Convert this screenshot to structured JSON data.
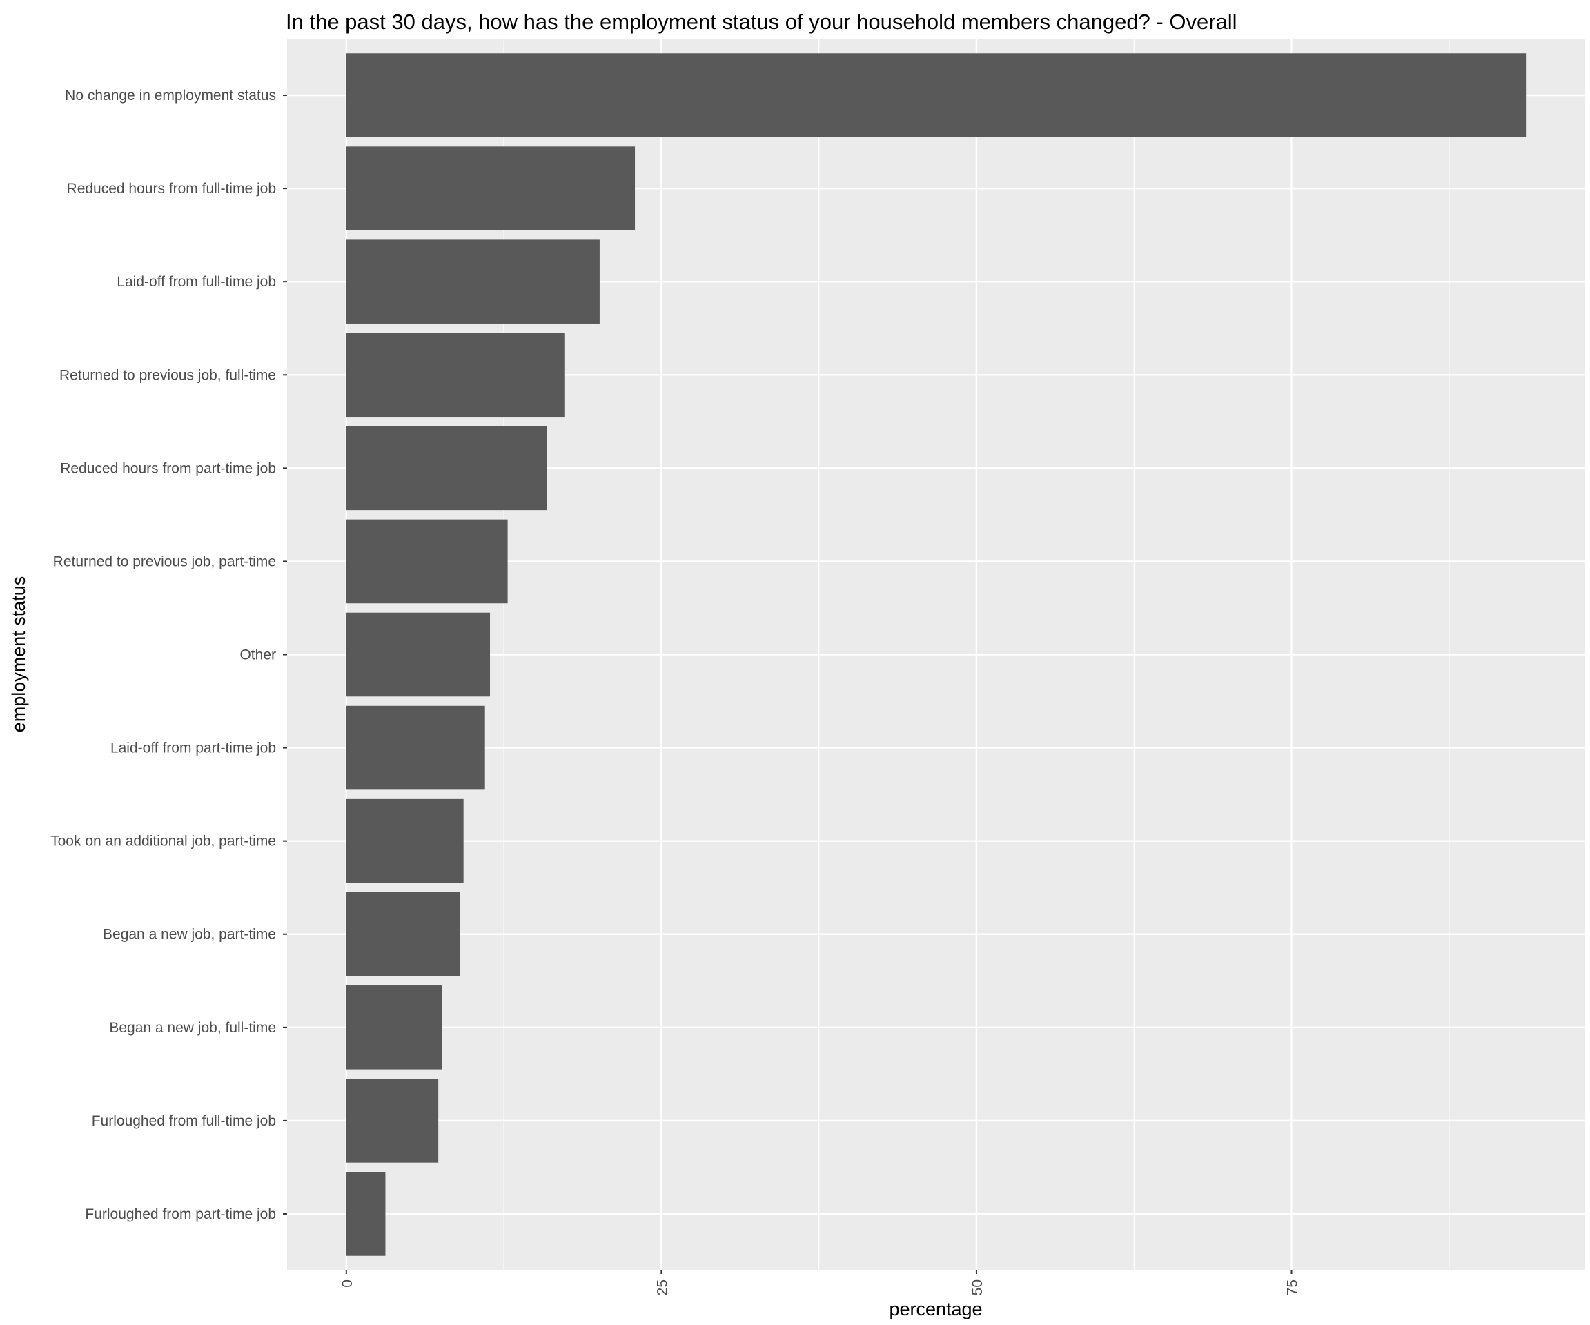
{
  "chart_data": {
    "type": "bar",
    "orientation": "horizontal",
    "title": "In the past 30 days, how has the employment status of your household members changed? - Overall",
    "xlabel": "percentage",
    "ylabel": "employment status",
    "xlim": [
      -4.7,
      98.3
    ],
    "xticks": [
      0,
      25,
      50,
      75
    ],
    "xtick_labels": [
      "0",
      "25",
      "50",
      "75"
    ],
    "grid": true,
    "bar_color": "#595959",
    "panel_color": "#EBEBEB",
    "categories": [
      "No change in employment status",
      "Reduced hours from full-time job",
      "Laid-off from full-time job",
      "Returned to previous job, full-time",
      "Reduced hours from part-time job",
      "Returned to previous job, part-time",
      "Other",
      "Laid-off from part-time job",
      "Took on an additional job, part-time",
      "Began a new job, part-time",
      "Began a new job, full-time",
      "Furloughed from full-time job",
      "Furloughed from part-time job"
    ],
    "values": [
      93.6,
      22.9,
      20.1,
      17.3,
      15.9,
      12.8,
      11.4,
      11.0,
      9.3,
      9.0,
      7.6,
      7.3,
      3.1
    ]
  }
}
